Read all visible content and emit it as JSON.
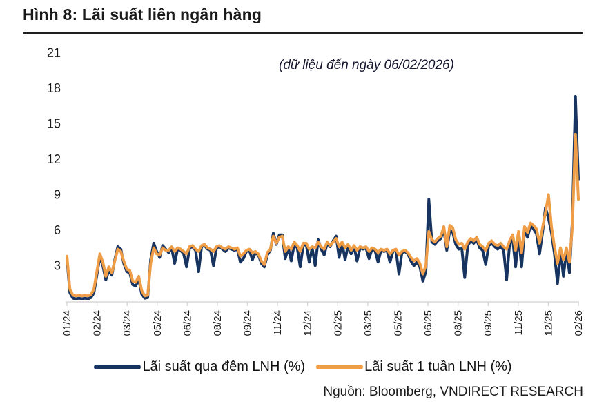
{
  "figure": {
    "title": "Hình 8: Lãi suất liên ngân hàng",
    "annotation": "(dữ liệu đến ngày 06/02/2026)",
    "source": "Nguồn: Bloomberg, VNDIRECT RESEARCH"
  },
  "legend_items": [
    {
      "label": "Lãi suất qua đêm LNH (%)",
      "color": "#17335f"
    },
    {
      "label": "Lãi suất 1 tuần LNH (%)",
      "color": "#ef9e47"
    }
  ],
  "chart_data": {
    "type": "line",
    "title": "Lãi suất liên ngân hàng",
    "subtitle": "(dữ liệu đến ngày 06/02/2026)",
    "x_tick_labels": [
      "01/24",
      "02/24",
      "03/24",
      "05/24",
      "06/24",
      "08/24",
      "09/24",
      "11/24",
      "12/24",
      "02/25",
      "03/25",
      "05/25",
      "06/25",
      "08/25",
      "09/25",
      "11/25",
      "12/25",
      "02/26"
    ],
    "y_ticks": [
      3,
      6,
      9,
      12,
      15,
      18,
      21
    ],
    "ylim": [
      0,
      21.8
    ],
    "grid": false,
    "legend_position": "bottom",
    "axis_color": "#d9d9d9",
    "series": [
      {
        "name": "Lãi suất qua đêm LNH (%)",
        "color": "#17335f",
        "values": [
          3.6,
          0.7,
          0.25,
          0.2,
          0.25,
          0.2,
          0.25,
          0.2,
          0.3,
          0.7,
          2.2,
          3.8,
          3.0,
          1.8,
          2.6,
          2.2,
          3.5,
          4.6,
          4.4,
          3.2,
          2.5,
          2.4,
          1.4,
          1.3,
          1.9,
          0.6,
          0.25,
          0.3,
          3.5,
          4.9,
          4.2,
          3.7,
          4.7,
          4.4,
          4.1,
          4.5,
          3.2,
          4.4,
          4.3,
          4.0,
          2.9,
          4.5,
          4.6,
          4.3,
          2.5,
          4.6,
          4.7,
          4.4,
          4.3,
          3.0,
          4.5,
          4.6,
          4.4,
          4.2,
          4.5,
          4.4,
          4.3,
          4.4,
          3.3,
          3.6,
          4.2,
          4.3,
          3.5,
          4.1,
          3.9,
          3.2,
          2.9,
          3.9,
          4.3,
          5.75,
          4.8,
          5.6,
          5.6,
          3.6,
          4.5,
          3.4,
          4.8,
          4.5,
          2.9,
          4.7,
          4.8,
          3.3,
          4.5,
          3.0,
          5.2,
          4.4,
          3.9,
          4.9,
          4.6,
          5.1,
          5.5,
          3.7,
          4.9,
          3.5,
          4.7,
          4.0,
          4.6,
          3.4,
          4.5,
          4.4,
          4.5,
          3.6,
          4.4,
          4.3,
          3.3,
          4.3,
          4.2,
          4.3,
          3.3,
          4.2,
          4.3,
          2.3,
          4.1,
          4.2,
          4.0,
          3.4,
          3.0,
          3.3,
          2.9,
          1.7,
          2.5,
          8.6,
          5.0,
          4.8,
          5.1,
          5.3,
          6.1,
          4.3,
          6.0,
          5.8,
          4.8,
          4.4,
          4.5,
          2.0,
          4.7,
          5.1,
          4.9,
          5.2,
          4.5,
          4.3,
          3.1,
          4.7,
          4.9,
          4.6,
          4.4,
          4.6,
          4.3,
          1.8,
          4.8,
          5.3,
          2.9,
          5.5,
          2.9,
          6.0,
          5.4,
          6.4,
          6.1,
          5.7,
          4.0,
          5.8,
          7.9,
          7.0,
          5.8,
          4.0,
          1.5,
          4.3,
          2.1,
          4.3,
          2.4,
          6.8,
          17.3,
          10.3
        ]
      },
      {
        "name": "Lãi suất 1 tuần LNH (%)",
        "color": "#ef9e47",
        "values": [
          3.8,
          1.0,
          0.5,
          0.45,
          0.5,
          0.45,
          0.5,
          0.45,
          0.55,
          1.0,
          2.5,
          4.0,
          3.3,
          2.1,
          2.9,
          2.4,
          3.4,
          4.4,
          4.2,
          3.4,
          2.7,
          2.6,
          1.7,
          1.6,
          2.1,
          0.9,
          0.45,
          0.5,
          3.2,
          4.5,
          4.0,
          3.9,
          4.5,
          4.3,
          4.3,
          4.6,
          4.2,
          4.5,
          4.4,
          4.2,
          4.0,
          4.6,
          4.7,
          4.4,
          4.2,
          4.7,
          4.8,
          4.5,
          4.4,
          4.2,
          4.6,
          4.7,
          4.5,
          4.4,
          4.6,
          4.5,
          4.4,
          4.5,
          3.8,
          4.0,
          4.3,
          4.4,
          4.1,
          4.2,
          4.0,
          3.4,
          3.1,
          4.1,
          4.4,
          5.5,
          4.9,
          5.4,
          5.5,
          4.2,
          4.6,
          4.4,
          5.0,
          4.7,
          4.2,
          4.9,
          4.9,
          4.4,
          4.6,
          4.5,
          5.0,
          4.6,
          4.4,
          5.0,
          4.7,
          5.0,
          5.3,
          4.6,
          5.0,
          4.5,
          4.8,
          4.3,
          4.7,
          4.3,
          4.6,
          4.5,
          4.6,
          4.2,
          4.5,
          4.4,
          4.1,
          4.4,
          4.3,
          4.4,
          4.0,
          4.3,
          4.4,
          3.9,
          4.2,
          4.3,
          4.1,
          3.7,
          3.4,
          3.6,
          3.2,
          2.3,
          3.0,
          5.9,
          5.2,
          5.0,
          5.3,
          5.5,
          6.3,
          4.6,
          6.4,
          6.2,
          5.2,
          4.8,
          4.9,
          4.4,
          5.0,
          5.3,
          5.1,
          5.4,
          4.8,
          4.6,
          4.3,
          4.9,
          5.1,
          4.8,
          4.7,
          4.9,
          4.6,
          4.4,
          5.1,
          5.6,
          4.3,
          5.9,
          4.1,
          6.3,
          5.8,
          6.6,
          6.4,
          6.1,
          4.9,
          6.2,
          7.5,
          9.0,
          6.3,
          4.6,
          3.2,
          4.5,
          3.5,
          4.5,
          3.3,
          6.3,
          14.1,
          8.6
        ]
      }
    ]
  }
}
